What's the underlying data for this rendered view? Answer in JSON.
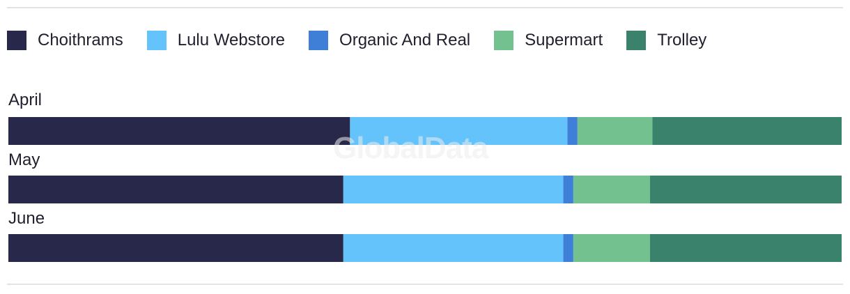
{
  "watermark": "GlobalData",
  "chart_data": {
    "type": "bar",
    "orientation": "horizontal",
    "stacked": true,
    "normalized": true,
    "categories": [
      "April",
      "May",
      "June"
    ],
    "series": [
      {
        "name": "Choithrams",
        "color": "#28284a",
        "values": [
          41.0,
          40.2,
          40.2
        ]
      },
      {
        "name": "Lulu Webstore",
        "color": "#64c3fa",
        "values": [
          26.1,
          26.4,
          26.4
        ]
      },
      {
        "name": "Organic And Real",
        "color": "#3f7fd8",
        "values": [
          1.2,
          1.2,
          1.2
        ]
      },
      {
        "name": "Supermart",
        "color": "#72c18f",
        "values": [
          9.0,
          9.2,
          9.2
        ]
      },
      {
        "name": "Trolley",
        "color": "#3a826b",
        "values": [
          22.7,
          23.0,
          23.0
        ]
      }
    ],
    "xlim": [
      0,
      100
    ],
    "legend_position": "top-left"
  }
}
